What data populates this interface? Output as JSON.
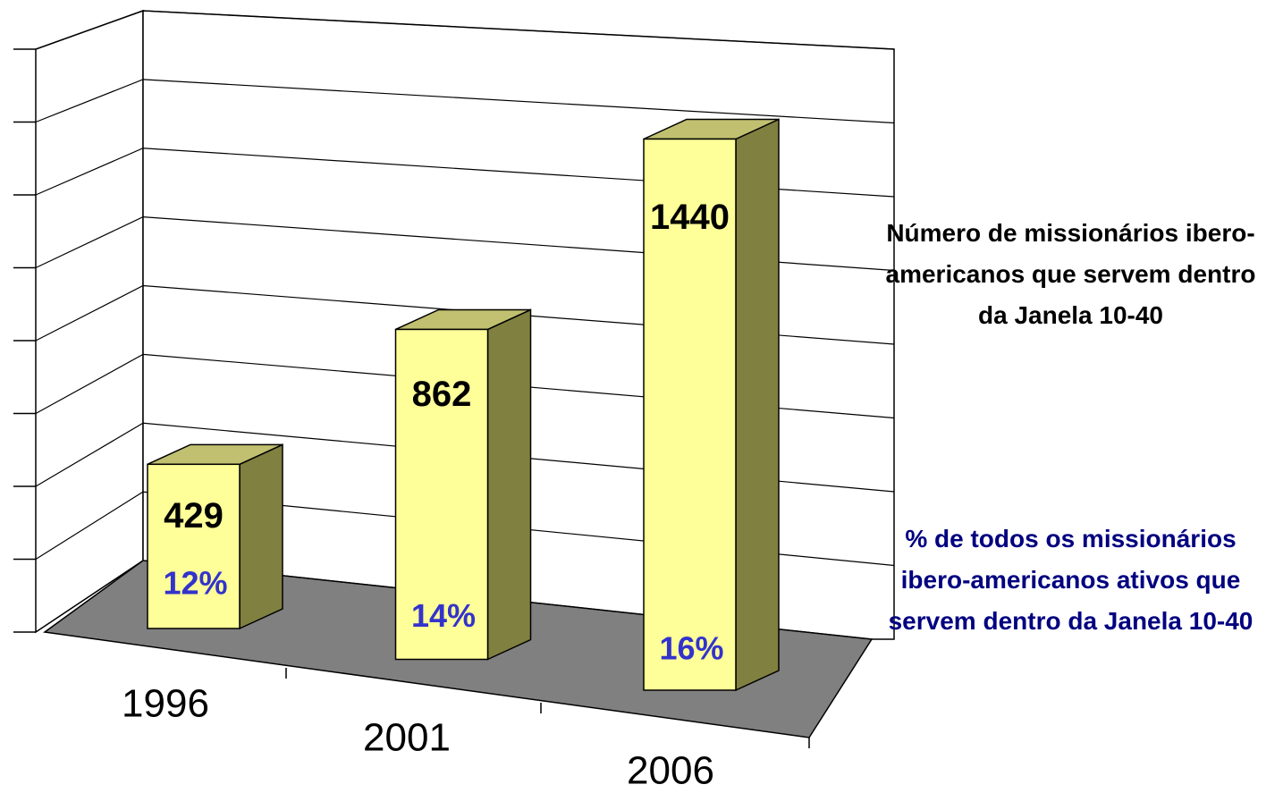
{
  "chart_data": {
    "type": "bar3d",
    "categories": [
      "1996",
      "2001",
      "2006"
    ],
    "series": [
      {
        "name": "Número de missionários ibero-americanos que servem dentro da Janela 10-40",
        "color": "#ffff99",
        "values": [
          429,
          862,
          1440
        ]
      },
      {
        "name": "% de todos os missionários ibero-americanos ativos que servem dentro da Janela 10-40",
        "color": "#3333cc",
        "values": [
          12,
          14,
          16
        ],
        "value_labels": [
          "12%",
          "14%",
          "16%"
        ]
      }
    ],
    "ylim": [
      0,
      1600
    ],
    "yticks": [
      0,
      200,
      400,
      600,
      800,
      1000,
      1200,
      1400,
      1600
    ],
    "grid": true
  }
}
